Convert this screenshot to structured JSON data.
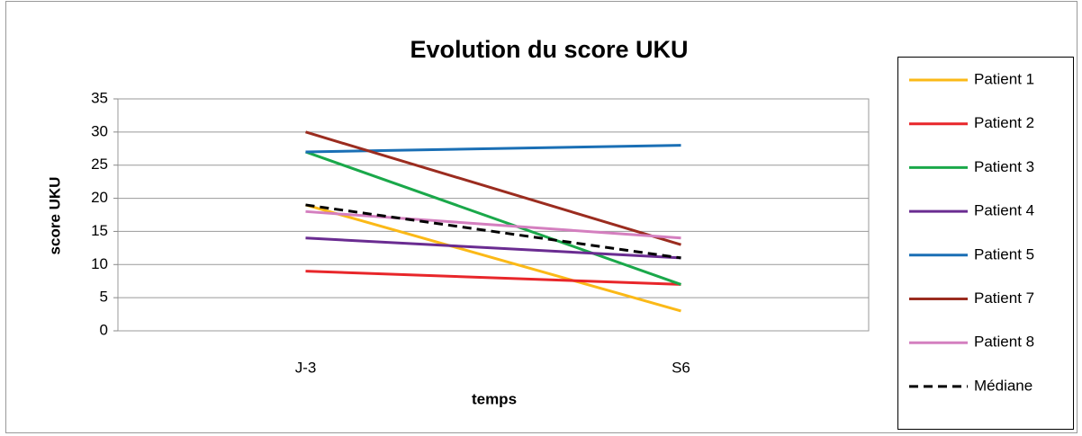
{
  "chart_data": {
    "type": "line",
    "title": "Evolution du score UKU",
    "x_label": "temps",
    "y_label": "score UKU",
    "categories": [
      "J-3",
      "S6"
    ],
    "ylim": [
      0,
      35
    ],
    "yticks": [
      0,
      5,
      10,
      15,
      20,
      25,
      30,
      35
    ],
    "grid": true,
    "legend": "right",
    "series": [
      {
        "name": "Patient 1",
        "color": "#fbb917",
        "values": [
          19,
          3
        ]
      },
      {
        "name": "Patient 2",
        "color": "#e8262a",
        "values": [
          9,
          7
        ]
      },
      {
        "name": "Patient 3",
        "color": "#1aa84a",
        "values": [
          27,
          7
        ]
      },
      {
        "name": "Patient 4",
        "color": "#6a2c91",
        "values": [
          14,
          11
        ]
      },
      {
        "name": "Patient 5",
        "color": "#1a6fb5",
        "values": [
          27,
          28
        ]
      },
      {
        "name": "Patient 7",
        "color": "#9b2c1f",
        "values": [
          30,
          13
        ]
      },
      {
        "name": "Patient 8",
        "color": "#d47fbf",
        "values": [
          18,
          14
        ]
      },
      {
        "name": "Médiane",
        "color": "#000000",
        "dashed": true,
        "values": [
          19,
          11
        ]
      }
    ]
  }
}
